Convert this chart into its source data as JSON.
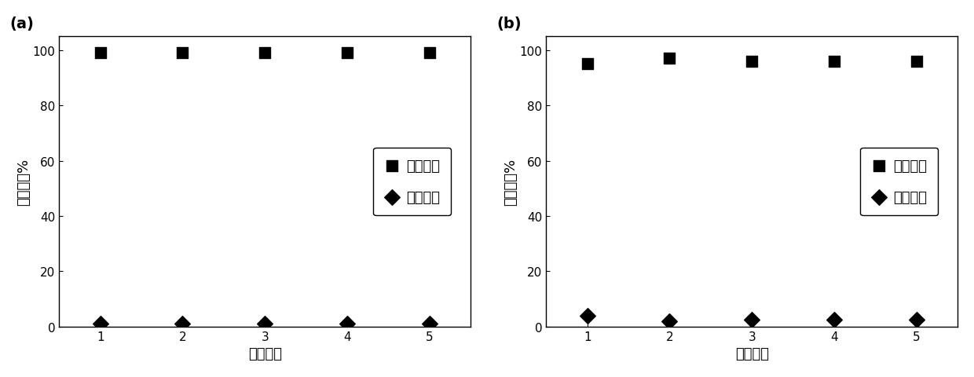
{
  "plot_a": {
    "label": "(a)",
    "x": [
      1,
      2,
      3,
      4,
      5
    ],
    "para_values": [
      99,
      99,
      99,
      99,
      99
    ],
    "ortho_values": [
      1,
      1,
      1,
      1,
      1
    ],
    "xlabel": "循环次数",
    "ylabel": "百分含量%",
    "ylim": [
      0,
      105
    ],
    "yticks": [
      0,
      20,
      40,
      60,
      80,
      100
    ],
    "xlim": [
      0.5,
      5.5
    ],
    "xticks": [
      1,
      2,
      3,
      4,
      5
    ]
  },
  "plot_b": {
    "label": "(b)",
    "x": [
      1,
      2,
      3,
      4,
      5
    ],
    "para_values": [
      95,
      97,
      96,
      96,
      96
    ],
    "ortho_values": [
      4,
      2,
      2.5,
      2.5,
      2.5
    ],
    "xlabel": "循环次数",
    "ylabel": "百分含量%",
    "ylim": [
      0,
      105
    ],
    "yticks": [
      0,
      20,
      40,
      60,
      80,
      100
    ],
    "xlim": [
      0.5,
      5.5
    ],
    "xticks": [
      1,
      2,
      3,
      4,
      5
    ]
  },
  "legend_para": "对氯甲苯",
  "legend_ortho": "邻氯甲苯",
  "marker_para": "s",
  "marker_ortho": "D",
  "marker_size": 10,
  "color": "black",
  "background_color": "#ffffff",
  "font_size_label": 13,
  "font_size_tick": 11,
  "font_size_legend": 13,
  "font_size_panel_label": 14
}
